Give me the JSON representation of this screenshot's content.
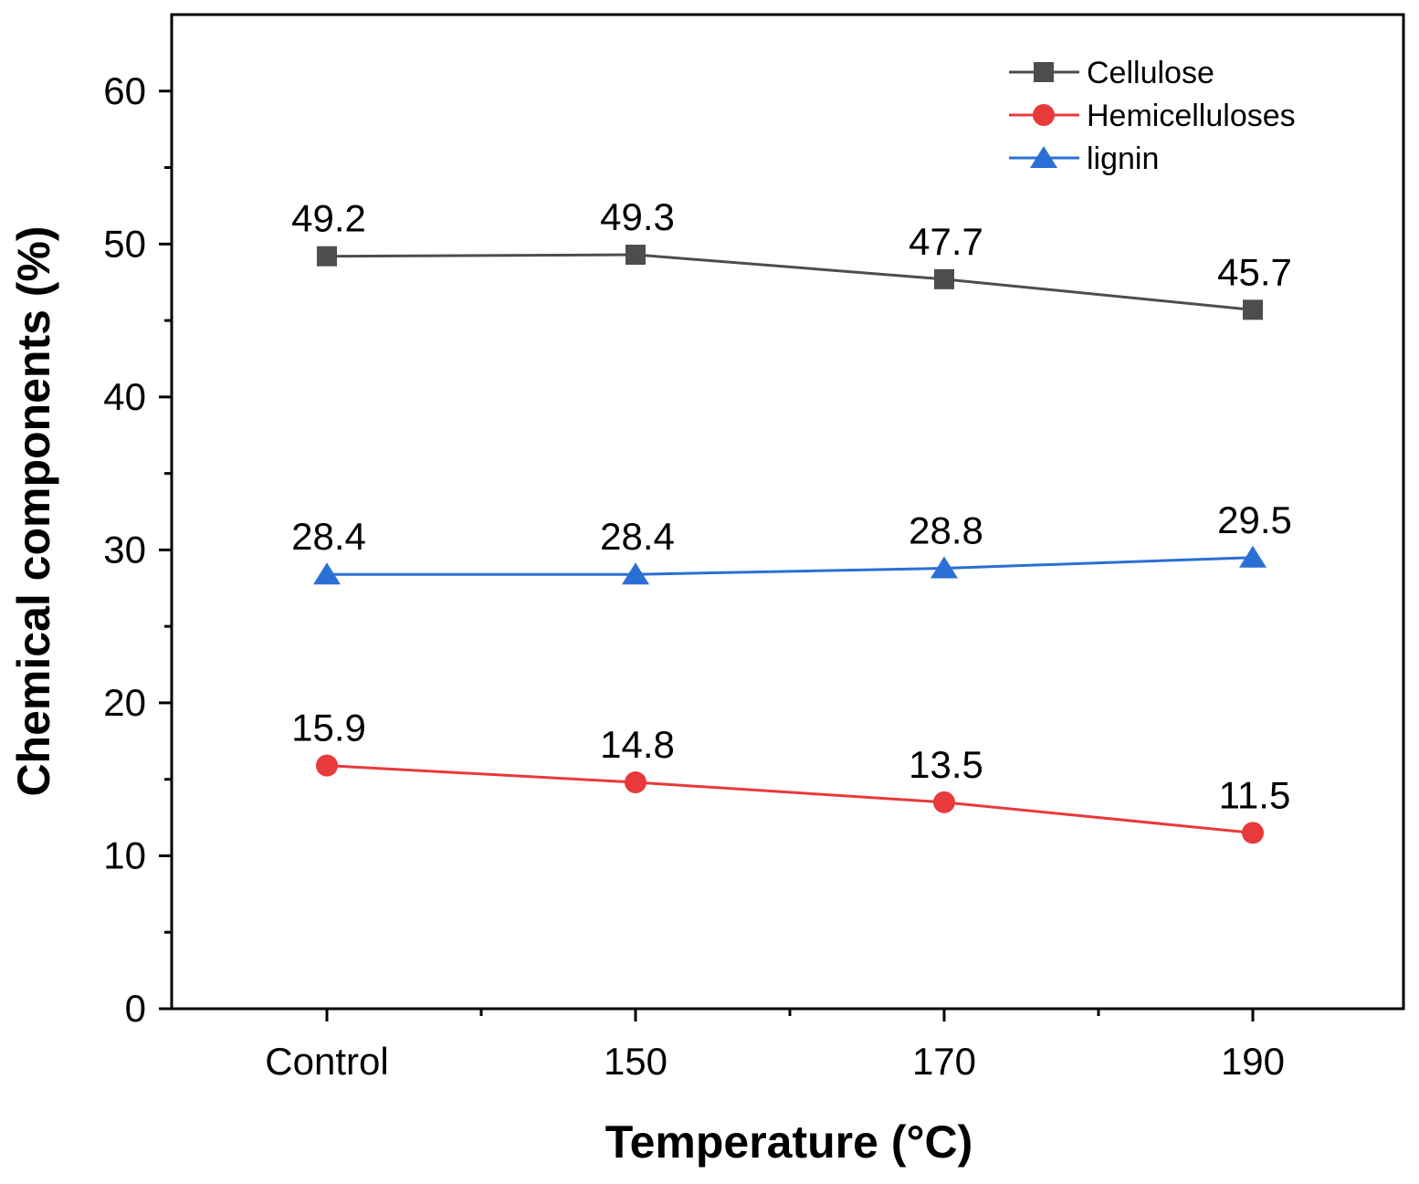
{
  "chart_data": {
    "type": "line",
    "title": "",
    "xlabel": "Temperature (°C)",
    "ylabel": "Chemical components (%)",
    "categories": [
      "Control",
      "150",
      "170",
      "190"
    ],
    "ylim": [
      0,
      65
    ],
    "yticks": [
      0,
      10,
      20,
      30,
      40,
      50,
      60
    ],
    "grid": false,
    "legend_position": "top-right",
    "series": [
      {
        "name": "Cellulose",
        "marker": "square",
        "color": "#4d4d4d",
        "values": [
          49.2,
          49.3,
          47.7,
          45.7
        ],
        "labels": [
          "49.2",
          "49.3",
          "47.7",
          "45.7"
        ]
      },
      {
        "name": "Hemicelluloses",
        "marker": "circle",
        "color": "#e8393b",
        "values": [
          15.9,
          14.8,
          13.5,
          11.5
        ],
        "labels": [
          "15.9",
          "14.8",
          "13.5",
          "11.5"
        ]
      },
      {
        "name": "lignin",
        "marker": "triangle",
        "color": "#2a6fd6",
        "values": [
          28.4,
          28.4,
          28.8,
          29.5
        ],
        "labels": [
          "28.4",
          "28.4",
          "28.8",
          "29.5"
        ]
      }
    ]
  }
}
